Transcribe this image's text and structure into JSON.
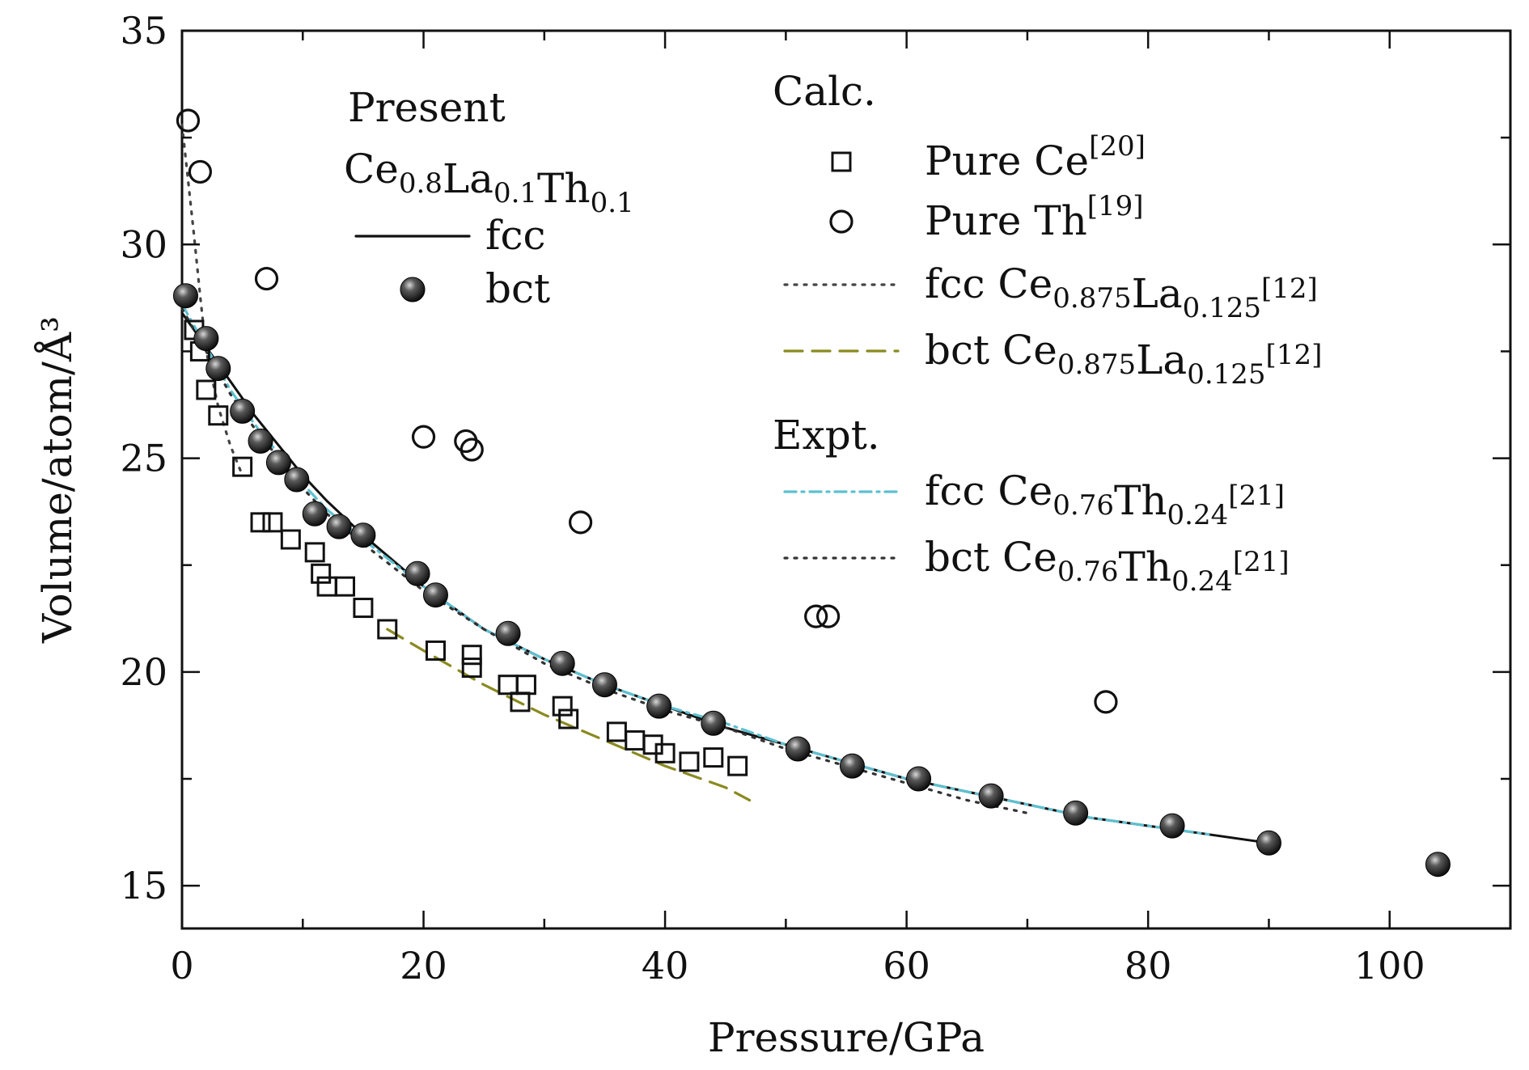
{
  "chart_data": {
    "type": "scatter",
    "xlabel": "Pressure/GPa",
    "ylabel": "Volume/atom/Å³",
    "xlim": [
      0,
      110
    ],
    "ylim": [
      14,
      35
    ],
    "x_ticks": [
      "0",
      "20",
      "40",
      "60",
      "80",
      "100"
    ],
    "y_ticks": [
      "15",
      "20",
      "25",
      "30",
      "35"
    ],
    "grid": false,
    "legend": {
      "present_heading": "Present",
      "present_material": {
        "parts": [
          [
            "Ce",
            ""
          ],
          [
            "0.8",
            "sub"
          ],
          [
            "La",
            ""
          ],
          [
            "0.1",
            "sub"
          ],
          [
            "Th",
            ""
          ],
          [
            "0.1",
            "sub"
          ]
        ]
      },
      "calc_heading": "Calc.",
      "expt_heading": "Expt."
    },
    "colors": {
      "fcc_present": "#111111",
      "bct_present": "#1a1a1a",
      "pure_ce": "#111111",
      "pure_th": "#111111",
      "fcc_cela": "#444444",
      "bct_cela": "#8a8a20",
      "fcc_ceth": "#5cc0d0",
      "bct_ceth": "#333333"
    },
    "series": [
      {
        "name": "fcc",
        "kind": "line",
        "style": "solid",
        "color_key": "fcc_present",
        "x": [
          0,
          2,
          4,
          6,
          8,
          10,
          12,
          15,
          20,
          25,
          30,
          35,
          40,
          45,
          50,
          55,
          60,
          65,
          70,
          75,
          80,
          85,
          90
        ],
        "y": [
          28.4,
          27.6,
          26.8,
          26.0,
          25.3,
          24.6,
          24.0,
          23.2,
          22.0,
          21.0,
          20.3,
          19.7,
          19.2,
          18.7,
          18.3,
          17.9,
          17.5,
          17.2,
          16.9,
          16.6,
          16.4,
          16.2,
          16.0
        ],
        "label_parts": [
          [
            "fcc",
            ""
          ]
        ]
      },
      {
        "name": "bct",
        "kind": "marker",
        "marker": "sphere",
        "color_key": "bct_present",
        "x": [
          0.3,
          2,
          3,
          5,
          6.5,
          8,
          9.5,
          11,
          13,
          15,
          19.5,
          21,
          27,
          31.5,
          35,
          39.5,
          44,
          51,
          55.5,
          61,
          67,
          74,
          82,
          90,
          104
        ],
        "y": [
          28.8,
          27.8,
          27.1,
          26.1,
          25.4,
          24.9,
          24.5,
          23.7,
          23.4,
          23.2,
          22.3,
          21.8,
          20.9,
          20.2,
          19.7,
          19.2,
          18.8,
          18.2,
          17.8,
          17.5,
          17.1,
          16.7,
          16.4,
          16.0,
          15.5
        ],
        "label_parts": [
          [
            "bct",
            ""
          ]
        ]
      },
      {
        "name": "Pure Ce",
        "kind": "marker",
        "marker": "square",
        "color_key": "pure_ce",
        "x": [
          1,
          1.5,
          2,
          3,
          5,
          6.5,
          7.5,
          9,
          11,
          11.5,
          12,
          13.5,
          15,
          17,
          21,
          24,
          24,
          27,
          28,
          28.5,
          31.5,
          32,
          36,
          37.5,
          39,
          40,
          42,
          44,
          46
        ],
        "y": [
          28.0,
          27.5,
          26.6,
          26.0,
          24.8,
          23.5,
          23.5,
          23.1,
          22.8,
          22.3,
          22.0,
          22.0,
          21.5,
          21.0,
          20.5,
          20.4,
          20.1,
          19.7,
          19.3,
          19.7,
          19.2,
          18.9,
          18.6,
          18.4,
          18.3,
          18.1,
          17.9,
          18.0,
          17.8
        ],
        "label_parts": [
          [
            "Pure Ce",
            ""
          ],
          [
            "[20]",
            "sup"
          ]
        ]
      },
      {
        "name": "Pure Th",
        "kind": "marker",
        "marker": "circle",
        "color_key": "pure_th",
        "x": [
          0.5,
          1.5,
          7,
          20,
          23.5,
          24,
          33,
          52.5,
          53.5,
          76.5
        ],
        "y": [
          32.9,
          31.7,
          29.2,
          25.5,
          25.4,
          25.2,
          23.5,
          21.3,
          21.3,
          19.3
        ],
        "label_parts": [
          [
            "Pure Th",
            ""
          ],
          [
            "[19]",
            "sup"
          ]
        ]
      },
      {
        "name": "fcc Ce0.875La0.125",
        "kind": "line",
        "style": "dotted",
        "color_key": "fcc_cela",
        "x": [
          0,
          0.5,
          1,
          1.5,
          2,
          3,
          4,
          5
        ],
        "y": [
          32.8,
          31.5,
          30.2,
          28.8,
          27.5,
          26.2,
          25.3,
          24.6
        ],
        "label_parts": [
          [
            "fcc Ce",
            ""
          ],
          [
            "0.875",
            "sub"
          ],
          [
            "La",
            ""
          ],
          [
            "0.125",
            "sub"
          ],
          [
            "[12]",
            "sup"
          ]
        ]
      },
      {
        "name": "bct Ce0.875La0.125",
        "kind": "line",
        "style": "dashed",
        "color_key": "bct_cela",
        "x": [
          17,
          20,
          25,
          30,
          35,
          40,
          45,
          47
        ],
        "y": [
          21.0,
          20.5,
          19.7,
          19.0,
          18.4,
          17.8,
          17.3,
          17.0
        ],
        "label_parts": [
          [
            "bct Ce",
            ""
          ],
          [
            "0.875",
            "sub"
          ],
          [
            "La",
            ""
          ],
          [
            "0.125",
            "sub"
          ],
          [
            "[12]",
            "sup"
          ]
        ]
      },
      {
        "name": "fcc Ce0.76Th0.24",
        "kind": "line",
        "style": "dashdot",
        "color_key": "fcc_ceth",
        "x": [
          0,
          2,
          4,
          6,
          8,
          10,
          12,
          15,
          20,
          25,
          30,
          35,
          40,
          45,
          50,
          55,
          60,
          65,
          70,
          75,
          80,
          85
        ],
        "y": [
          28.6,
          27.6,
          26.6,
          25.8,
          25.1,
          24.4,
          23.8,
          23.1,
          22.0,
          21.0,
          20.3,
          19.7,
          19.2,
          18.8,
          18.3,
          17.9,
          17.5,
          17.2,
          16.9,
          16.6,
          16.4,
          16.2
        ],
        "label_parts": [
          [
            "fcc Ce",
            ""
          ],
          [
            "0.76",
            "sub"
          ],
          [
            "Th",
            ""
          ],
          [
            "0.24",
            "sub"
          ],
          [
            "[21]",
            "sup"
          ]
        ]
      },
      {
        "name": "bct Ce0.76Th0.24",
        "kind": "line",
        "style": "dotted",
        "color_key": "bct_ceth",
        "x": [
          0,
          2,
          4,
          6,
          8,
          10,
          12,
          15,
          20,
          25,
          30,
          35,
          40,
          45,
          50,
          55,
          60,
          65,
          70
        ],
        "y": [
          28.5,
          27.5,
          26.5,
          25.7,
          25.0,
          24.3,
          23.7,
          23.0,
          21.9,
          21.0,
          20.2,
          19.6,
          19.1,
          18.7,
          18.2,
          17.8,
          17.4,
          17.0,
          16.7
        ],
        "label_parts": [
          [
            "bct Ce",
            ""
          ],
          [
            "0.76",
            "sub"
          ],
          [
            "Th",
            ""
          ],
          [
            "0.24",
            "sub"
          ],
          [
            "[21]",
            "sup"
          ]
        ]
      }
    ]
  }
}
